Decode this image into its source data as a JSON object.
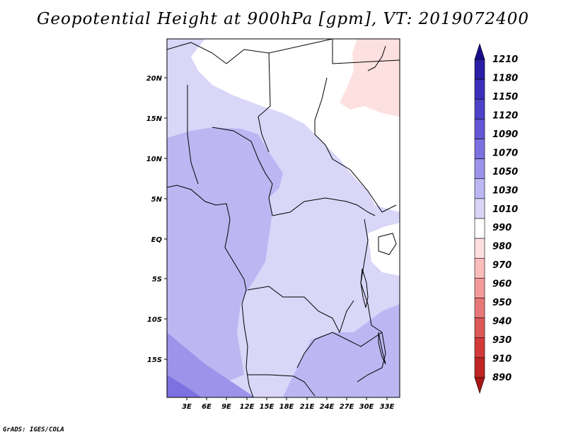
{
  "title": "Geopotential Height at 900hPa [gpm], VT: 2019072400",
  "credit": "GrADS: IGES/COLA",
  "map": {
    "lat_labels": [
      "20N",
      "15N",
      "10N",
      "5N",
      "EQ",
      "5S",
      "10S",
      "15S"
    ],
    "lon_labels": [
      "3E",
      "6E",
      "9E",
      "12E",
      "15E",
      "18E",
      "21E",
      "24E",
      "27E",
      "30E",
      "33E"
    ]
  },
  "colorbar": {
    "levels": [
      "1210",
      "1180",
      "1150",
      "1120",
      "1090",
      "1070",
      "1050",
      "1030",
      "1010",
      "990",
      "980",
      "970",
      "960",
      "950",
      "940",
      "930",
      "910",
      "890"
    ],
    "colors": [
      "#1a0b8c",
      "#2a1ea6",
      "#3b2fba",
      "#4d42c8",
      "#6556d6",
      "#7d70e0",
      "#9d93ea",
      "#bcb6f2",
      "#d9d6f8",
      "#ffffff",
      "#ffe0e0",
      "#fbbcbc",
      "#f49a9a",
      "#e87878",
      "#dd5858",
      "#d23a3a",
      "#c02525",
      "#a81515"
    ]
  }
}
